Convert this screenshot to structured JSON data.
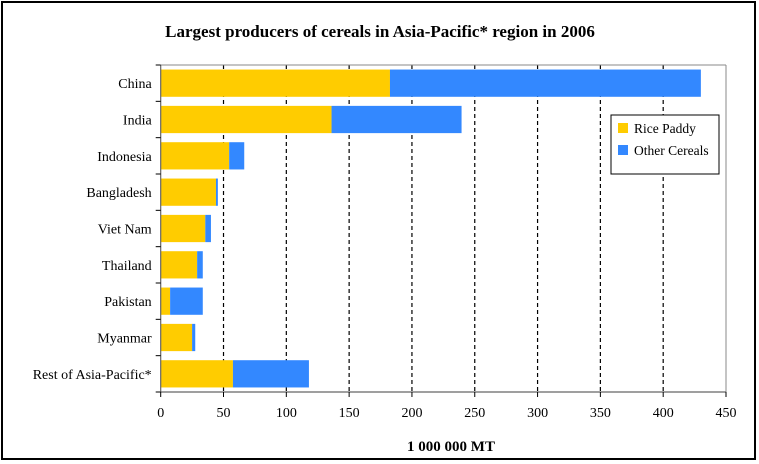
{
  "chart_data": {
    "type": "bar",
    "orientation": "horizontal",
    "stacked": true,
    "title": "Largest producers of cereals in Asia-Pacific* region in 2006",
    "xlabel": "1 000 000 MT",
    "ylabel": "",
    "xlim": [
      0,
      450
    ],
    "xticks": [
      0,
      50,
      100,
      150,
      200,
      250,
      300,
      350,
      400,
      450
    ],
    "grid": "vertical dashed",
    "legend_position": "right",
    "categories": [
      "China",
      "India",
      "Indonesia",
      "Bangladesh",
      "Viet Nam",
      "Thailand",
      "Pakistan",
      "Myanmar",
      "Rest of Asia-Pacific*"
    ],
    "series": [
      {
        "name": "Rice Paddy",
        "color": "#FFCC00",
        "values": [
          182.5,
          136,
          54.5,
          44,
          35.5,
          29,
          7.5,
          25,
          57.5
        ]
      },
      {
        "name": "Other Cereals",
        "color": "#3388FF",
        "values": [
          247.5,
          103.5,
          12,
          1.5,
          4.5,
          4.5,
          26,
          2.5,
          60.5
        ]
      }
    ]
  }
}
